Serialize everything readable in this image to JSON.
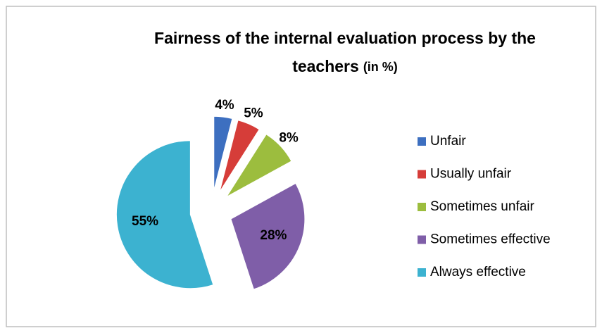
{
  "chart_data": {
    "type": "pie",
    "title": "Fairness of the internal evaluation process by the",
    "title_line2": "teachers",
    "title_unit": "(in %)",
    "categories": [
      "Unfair",
      "Usually unfair",
      "Sometimes unfair",
      "Sometimes effective",
      "Always effective"
    ],
    "values": [
      4,
      5,
      8,
      28,
      55
    ],
    "value_labels": [
      "4%",
      "5%",
      "8%",
      "28%",
      "55%"
    ],
    "colors": [
      "#3d6fc0",
      "#d63d39",
      "#9cbd3e",
      "#7f5ea8",
      "#3cb2d0"
    ],
    "legend": "right"
  }
}
